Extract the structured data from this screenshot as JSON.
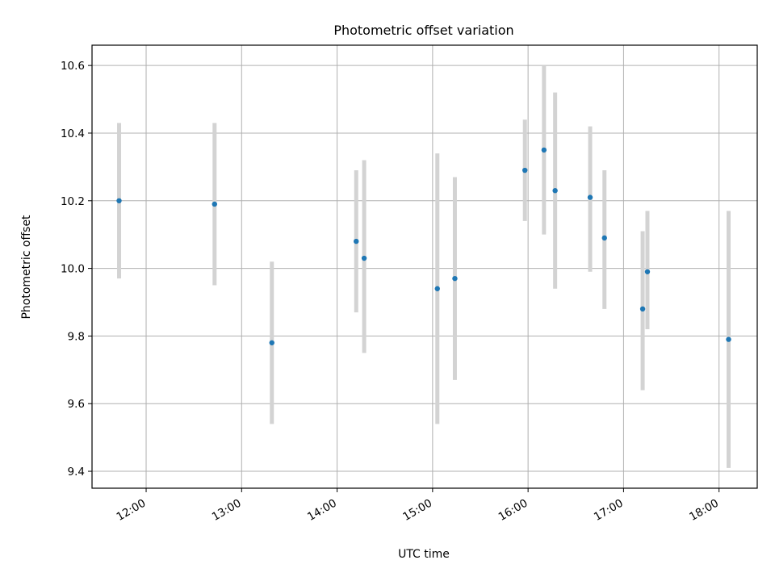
{
  "chart_data": {
    "type": "scatter",
    "title": "Photometric offset variation",
    "xlabel": "UTC time",
    "ylabel": "Photometric offset",
    "xlim": [
      "11:26",
      "18:24"
    ],
    "ylim": [
      9.35,
      10.66
    ],
    "grid": true,
    "x_ticks": [
      "12:00",
      "13:00",
      "14:00",
      "15:00",
      "16:00",
      "17:00",
      "18:00"
    ],
    "y_ticks": [
      9.4,
      9.6,
      9.8,
      10.0,
      10.2,
      10.4,
      10.6
    ],
    "y_tick_labels": [
      "9.4",
      "9.6",
      "9.8",
      "10.0",
      "10.2",
      "10.4",
      "10.6"
    ],
    "series": [
      {
        "marker_color": "#1f77b4",
        "errorbar_color": "#d3d3d3",
        "points": [
          {
            "x": "11:43",
            "y": 10.2,
            "ylow": 9.97,
            "yhigh": 10.43
          },
          {
            "x": "12:43",
            "y": 10.19,
            "ylow": 9.95,
            "yhigh": 10.43
          },
          {
            "x": "13:19",
            "y": 9.78,
            "ylow": 9.54,
            "yhigh": 10.02
          },
          {
            "x": "14:12",
            "y": 10.08,
            "ylow": 9.87,
            "yhigh": 10.29
          },
          {
            "x": "14:17",
            "y": 10.03,
            "ylow": 9.75,
            "yhigh": 10.32
          },
          {
            "x": "15:03",
            "y": 9.94,
            "ylow": 9.54,
            "yhigh": 10.34
          },
          {
            "x": "15:14",
            "y": 9.97,
            "ylow": 9.67,
            "yhigh": 10.27
          },
          {
            "x": "15:58",
            "y": 10.29,
            "ylow": 10.14,
            "yhigh": 10.44
          },
          {
            "x": "16:10",
            "y": 10.35,
            "ylow": 10.1,
            "yhigh": 10.6
          },
          {
            "x": "16:17",
            "y": 10.23,
            "ylow": 9.94,
            "yhigh": 10.52
          },
          {
            "x": "16:39",
            "y": 10.21,
            "ylow": 9.99,
            "yhigh": 10.42
          },
          {
            "x": "16:48",
            "y": 10.09,
            "ylow": 9.88,
            "yhigh": 10.29
          },
          {
            "x": "17:12",
            "y": 9.88,
            "ylow": 9.64,
            "yhigh": 10.11
          },
          {
            "x": "17:15",
            "y": 9.99,
            "ylow": 9.82,
            "yhigh": 10.17
          },
          {
            "x": "18:06",
            "y": 9.79,
            "ylow": 9.41,
            "yhigh": 10.17
          }
        ]
      }
    ]
  }
}
